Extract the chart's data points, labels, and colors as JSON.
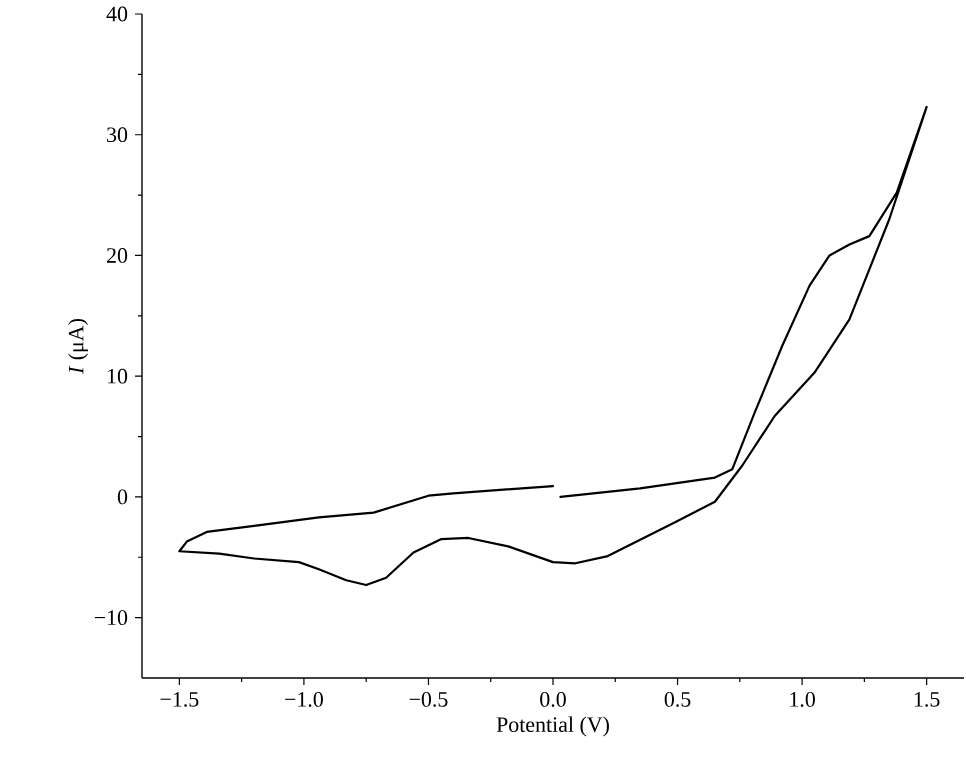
{
  "chart_data": {
    "type": "line",
    "xlabel": "Potential (V)",
    "ylabel": "*I* (μA)",
    "xlim": [
      -1.65,
      1.65
    ],
    "ylim": [
      -15,
      40
    ],
    "xticks": [
      {
        "value": -1.5,
        "label": "−1.5"
      },
      {
        "value": -1.0,
        "label": "−1.0"
      },
      {
        "value": -0.5,
        "label": "−0.5"
      },
      {
        "value": 0.0,
        "label": "0.0"
      },
      {
        "value": 0.5,
        "label": "0.5"
      },
      {
        "value": 1.0,
        "label": "1.0"
      },
      {
        "value": 1.5,
        "label": "1.5"
      }
    ],
    "yticks": [
      {
        "value": -10,
        "label": "−10"
      },
      0,
      10,
      20,
      30,
      40
    ],
    "marker": "none",
    "line_style": "solid",
    "series": [
      {
        "color": "#000000",
        "x": [
          0.0,
          -0.4,
          -0.5,
          -0.72,
          -0.94,
          -1.2,
          -1.39,
          -1.47,
          -1.5,
          -1.34,
          -1.2,
          -1.02,
          -0.94,
          -0.83,
          -0.75,
          -0.67,
          -0.56,
          -0.45,
          -0.34,
          -0.18,
          0.0,
          0.09,
          0.22,
          0.49,
          0.65,
          0.76,
          0.89,
          1.05,
          1.19,
          1.35,
          1.5,
          1.38,
          1.27,
          1.19,
          1.11,
          1.03,
          0.92,
          0.81,
          0.72,
          0.65,
          0.35,
          0.03
        ],
        "values": [
          0.9,
          0.3,
          0.1,
          -1.3,
          -1.7,
          -2.4,
          -2.9,
          -3.7,
          -4.5,
          -4.7,
          -5.1,
          -5.4,
          -6.0,
          -6.9,
          -7.3,
          -6.7,
          -4.6,
          -3.5,
          -3.4,
          -4.1,
          -5.4,
          -5.5,
          -4.9,
          -2.1,
          -0.4,
          2.6,
          6.7,
          10.3,
          14.7,
          23.0,
          32.3,
          25.2,
          21.6,
          20.9,
          20.0,
          17.5,
          12.5,
          7.0,
          2.3,
          1.6,
          0.7,
          0.0
        ]
      }
    ]
  }
}
